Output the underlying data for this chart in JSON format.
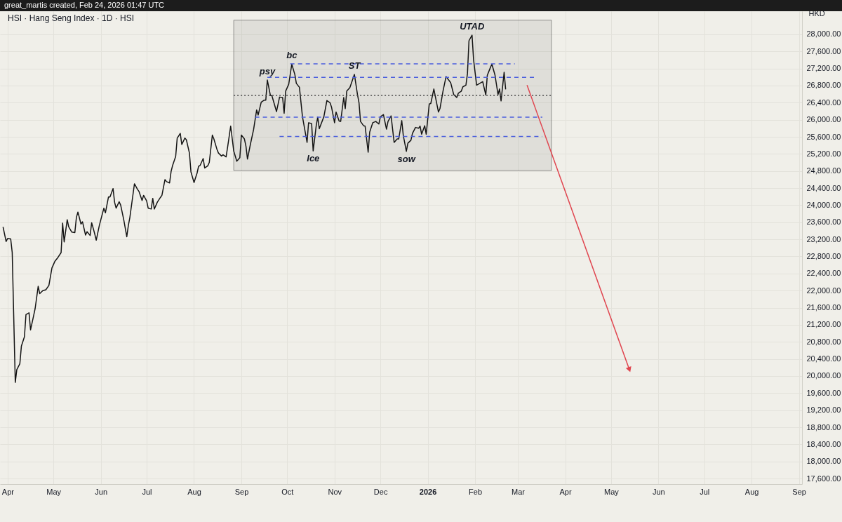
{
  "chart_data": {
    "type": "line",
    "title": "HSI · Hang Seng Index · 1D · HSI",
    "ylabel": "HKD",
    "annotations": [
      "great_martis created, Feb 24, 2026 01:47 UTC",
      {
        "text": "psy",
        "x": "2025-09-18",
        "y": 26930
      },
      {
        "text": "bc",
        "x": "2025-10-04",
        "y": 27300
      },
      {
        "text": "Ice",
        "x": "2025-10-18",
        "y": 25270
      },
      {
        "text": "ST",
        "x": "2025-11-14",
        "y": 27060
      },
      {
        "text": "sow",
        "x": "2025-12-18",
        "y": 25260
      },
      {
        "text": "UTAD",
        "x": "2026-01-30",
        "y": 27980
      }
    ],
    "xlim": [
      "2025-03-27",
      "2026-09-03"
    ],
    "ylim": [
      17470,
      28540
    ],
    "xticks": [
      {
        "value": "2025-04-01",
        "label": "Apr"
      },
      {
        "value": "2025-05-01",
        "label": "May"
      },
      {
        "value": "2025-06-01",
        "label": "Jun"
      },
      {
        "value": "2025-07-01",
        "label": "Jul"
      },
      {
        "value": "2025-08-01",
        "label": "Aug"
      },
      {
        "value": "2025-09-01",
        "label": "Sep"
      },
      {
        "value": "2025-10-01",
        "label": "Oct"
      },
      {
        "value": "2025-11-01",
        "label": "Nov"
      },
      {
        "value": "2025-12-01",
        "label": "Dec"
      },
      {
        "value": "2026-01-01",
        "label": "2026"
      },
      {
        "value": "2026-02-01",
        "label": "Feb"
      },
      {
        "value": "2026-03-01",
        "label": "Mar"
      },
      {
        "value": "2026-04-01",
        "label": "Apr"
      },
      {
        "value": "2026-05-01",
        "label": "May"
      },
      {
        "value": "2026-06-01",
        "label": "Jun"
      },
      {
        "value": "2026-07-01",
        "label": "Jul"
      },
      {
        "value": "2026-08-01",
        "label": "Aug"
      },
      {
        "value": "2026-09-01",
        "label": "Sep"
      }
    ],
    "yticks": [
      {
        "value": 17600,
        "label": "17,600.00"
      },
      {
        "value": 18000,
        "label": "18,000.00"
      },
      {
        "value": 18400,
        "label": "18,400.00"
      },
      {
        "value": 18800,
        "label": "18,800.00"
      },
      {
        "value": 19200,
        "label": "19,200.00"
      },
      {
        "value": 19600,
        "label": "19,600.00"
      },
      {
        "value": 20000,
        "label": "20,000.00"
      },
      {
        "value": 20400,
        "label": "20,400.00"
      },
      {
        "value": 20800,
        "label": "20,800.00"
      },
      {
        "value": 21200,
        "label": "21,200.00"
      },
      {
        "value": 21600,
        "label": "21,600.00"
      },
      {
        "value": 22000,
        "label": "22,000.00"
      },
      {
        "value": 22400,
        "label": "22,400.00"
      },
      {
        "value": 22800,
        "label": "22,800.00"
      },
      {
        "value": 23200,
        "label": "23,200.00"
      },
      {
        "value": 23600,
        "label": "23,600.00"
      },
      {
        "value": 24000,
        "label": "24,000.00"
      },
      {
        "value": 24400,
        "label": "24,400.00"
      },
      {
        "value": 24800,
        "label": "24,800.00"
      },
      {
        "value": 25200,
        "label": "25,200.00"
      },
      {
        "value": 25600,
        "label": "25,600.00"
      },
      {
        "value": 26000,
        "label": "26,000.00"
      },
      {
        "value": 26400,
        "label": "26,400.00"
      },
      {
        "value": 26800,
        "label": "26,800.00"
      },
      {
        "value": 27200,
        "label": "27,200.00"
      },
      {
        "value": 27600,
        "label": "27,600.00"
      },
      {
        "value": 28000,
        "label": "28,000.00"
      }
    ],
    "grid": true,
    "series": [
      {
        "color": "#141414",
        "x": [
          "2025-03-29",
          "2025-03-31",
          "2025-04-01",
          "2025-04-03",
          "2025-04-04",
          "2025-04-06",
          "2025-04-07",
          "2025-04-09",
          "2025-04-10",
          "2025-04-12",
          "2025-04-13",
          "2025-04-15",
          "2025-04-16",
          "2025-04-18",
          "2025-04-19",
          "2025-04-21",
          "2025-04-22",
          "2025-04-24",
          "2025-04-26",
          "2025-04-28",
          "2025-04-30",
          "2025-05-02",
          "2025-05-04",
          "2025-05-06",
          "2025-05-07",
          "2025-05-08",
          "2025-05-10",
          "2025-05-11",
          "2025-05-13",
          "2025-05-15",
          "2025-05-16",
          "2025-05-17",
          "2025-05-19",
          "2025-05-20",
          "2025-05-22",
          "2025-05-23",
          "2025-05-25",
          "2025-05-26",
          "2025-05-28",
          "2025-05-29",
          "2025-05-31",
          "2025-06-01",
          "2025-06-03",
          "2025-06-04",
          "2025-06-06",
          "2025-06-07",
          "2025-06-09",
          "2025-06-10",
          "2025-06-11",
          "2025-06-13",
          "2025-06-14",
          "2025-06-16",
          "2025-06-18",
          "2025-06-19",
          "2025-06-20",
          "2025-06-23",
          "2025-06-25",
          "2025-06-26",
          "2025-06-28",
          "2025-06-29",
          "2025-07-01",
          "2025-07-02",
          "2025-07-04",
          "2025-07-05",
          "2025-07-06",
          "2025-07-08",
          "2025-07-10",
          "2025-07-11",
          "2025-07-13",
          "2025-07-14",
          "2025-07-16",
          "2025-07-17",
          "2025-07-18",
          "2025-07-20",
          "2025-07-21",
          "2025-07-23",
          "2025-07-24",
          "2025-07-26",
          "2025-07-27",
          "2025-07-29",
          "2025-07-30",
          "2025-08-01",
          "2025-08-03",
          "2025-08-04",
          "2025-08-05",
          "2025-08-07",
          "2025-08-08",
          "2025-08-10",
          "2025-08-11",
          "2025-08-13",
          "2025-08-14",
          "2025-08-16",
          "2025-08-17",
          "2025-08-19",
          "2025-08-20",
          "2025-08-22",
          "2025-08-23",
          "2025-08-25",
          "2025-08-27",
          "2025-08-29",
          "2025-08-31",
          "2025-09-01",
          "2025-09-03",
          "2025-09-04",
          "2025-09-05",
          "2025-09-07",
          "2025-09-09",
          "2025-09-11",
          "2025-09-12",
          "2025-09-14",
          "2025-09-16",
          "2025-09-17",
          "2025-09-18",
          "2025-09-20",
          "2025-09-21",
          "2025-09-24",
          "2025-09-26",
          "2025-09-28",
          "2025-09-29",
          "2025-09-30",
          "2025-10-02",
          "2025-10-04",
          "2025-10-06",
          "2025-10-07",
          "2025-10-09",
          "2025-10-11",
          "2025-10-14",
          "2025-10-15",
          "2025-10-17",
          "2025-10-18",
          "2025-10-20",
          "2025-10-21",
          "2025-10-22",
          "2025-10-25",
          "2025-10-27",
          "2025-10-29",
          "2025-10-30",
          "2025-11-01",
          "2025-11-02",
          "2025-11-04",
          "2025-11-05",
          "2025-11-07",
          "2025-11-08",
          "2025-11-09",
          "2025-11-11",
          "2025-11-14",
          "2025-11-16",
          "2025-11-17",
          "2025-11-18",
          "2025-11-20",
          "2025-11-21",
          "2025-11-23",
          "2025-11-24",
          "2025-11-26",
          "2025-11-28",
          "2025-11-30",
          "2025-12-01",
          "2025-12-03",
          "2025-12-05",
          "2025-12-06",
          "2025-12-08",
          "2025-12-10",
          "2025-12-12",
          "2025-12-13",
          "2025-12-15",
          "2025-12-16",
          "2025-12-18",
          "2025-12-19",
          "2025-12-21",
          "2025-12-22",
          "2025-12-24",
          "2025-12-26",
          "2025-12-27",
          "2025-12-28",
          "2025-12-30",
          "2025-12-31",
          "2026-01-02",
          "2026-01-03",
          "2026-01-05",
          "2026-01-08",
          "2026-01-09",
          "2026-01-11",
          "2026-01-13",
          "2026-01-16",
          "2026-01-18",
          "2026-01-20",
          "2026-01-21",
          "2026-01-23",
          "2026-01-24",
          "2026-01-26",
          "2026-01-27",
          "2026-01-28",
          "2026-01-30",
          "2026-01-31",
          "2026-02-02",
          "2026-02-04",
          "2026-02-06",
          "2026-02-08",
          "2026-02-09",
          "2026-02-11",
          "2026-02-12",
          "2026-02-14",
          "2026-02-16",
          "2026-02-17",
          "2026-02-18",
          "2026-02-20",
          "2026-02-21"
        ],
        "values": [
          23490,
          23150,
          23220,
          23210,
          22890,
          19850,
          20150,
          20290,
          20700,
          20920,
          21440,
          21480,
          21080,
          21410,
          21580,
          22100,
          21930,
          22000,
          22020,
          22120,
          22530,
          22690,
          22780,
          22890,
          23580,
          23140,
          23660,
          23490,
          23370,
          23360,
          23710,
          23840,
          23560,
          23610,
          23300,
          23380,
          23290,
          23590,
          23330,
          23180,
          23520,
          23660,
          23930,
          23820,
          24190,
          24190,
          24390,
          24070,
          23930,
          24080,
          24000,
          23660,
          23260,
          23520,
          23710,
          24500,
          24370,
          24320,
          24110,
          24230,
          24100,
          23930,
          23910,
          24160,
          23910,
          24070,
          24180,
          24230,
          24600,
          24550,
          24520,
          24790,
          24930,
          25140,
          25570,
          25680,
          25420,
          25570,
          25530,
          25220,
          24780,
          24530,
          24750,
          24910,
          24930,
          25090,
          24870,
          24920,
          25000,
          25640,
          25550,
          25310,
          25220,
          25150,
          25180,
          25130,
          25360,
          25850,
          25270,
          25030,
          25110,
          25640,
          25550,
          25380,
          25080,
          25440,
          25770,
          26230,
          26110,
          26410,
          26460,
          26460,
          26930,
          26570,
          26560,
          26190,
          26530,
          26520,
          26150,
          26670,
          26830,
          27300,
          27060,
          26850,
          26760,
          26070,
          25470,
          25930,
          25910,
          25270,
          25860,
          26060,
          25790,
          26070,
          26450,
          26400,
          26300,
          25930,
          26180,
          25970,
          25960,
          26520,
          26260,
          26670,
          26750,
          27060,
          26590,
          26400,
          25960,
          25860,
          25850,
          25240,
          25710,
          25930,
          25960,
          25900,
          26070,
          26120,
          25780,
          25960,
          26090,
          25470,
          25550,
          25550,
          25980,
          25630,
          25260,
          25450,
          25520,
          25680,
          25820,
          25800,
          25850,
          25660,
          25860,
          25660,
          26370,
          26380,
          26720,
          26180,
          26260,
          26670,
          27010,
          26870,
          26590,
          26520,
          26620,
          26670,
          26770,
          26810,
          27080,
          27850,
          27980,
          27410,
          26810,
          26850,
          26890,
          26580,
          27040,
          27220,
          27300,
          27050,
          26590,
          26720,
          26440,
          27110,
          26710
        ]
      },
      {
        "color": "#4a4a4a",
        "line_style": "dotted",
        "x": [
          "2025-08-27",
          "2026-03-23"
        ],
        "values": [
          26570,
          26570
        ],
        "lower": [
          24810,
          24810
        ],
        "upper": [
          28330,
          28330
        ]
      },
      {
        "color": "#4c5fdd",
        "line_style": "dashed",
        "x": [
          "2025-10-03",
          "2026-02-27"
        ],
        "values": [
          27310,
          27310
        ]
      },
      {
        "color": "#4c5fdd",
        "line_style": "dashed",
        "x": [
          "2025-09-18",
          "2026-03-12"
        ],
        "values": [
          26990,
          26990
        ]
      },
      {
        "color": "#4c5fdd",
        "line_style": "dashed",
        "x": [
          "2025-09-10",
          "2026-03-17"
        ],
        "values": [
          26060,
          26060
        ]
      },
      {
        "color": "#4c5fdd",
        "line_style": "dashed",
        "x": [
          "2025-09-26",
          "2026-03-17"
        ],
        "values": [
          25610,
          25610
        ]
      },
      {
        "color": "#e0454f",
        "marker": "triangle",
        "x": [
          "2026-03-07",
          "2026-05-13"
        ],
        "values": [
          26810,
          20150
        ]
      }
    ]
  }
}
